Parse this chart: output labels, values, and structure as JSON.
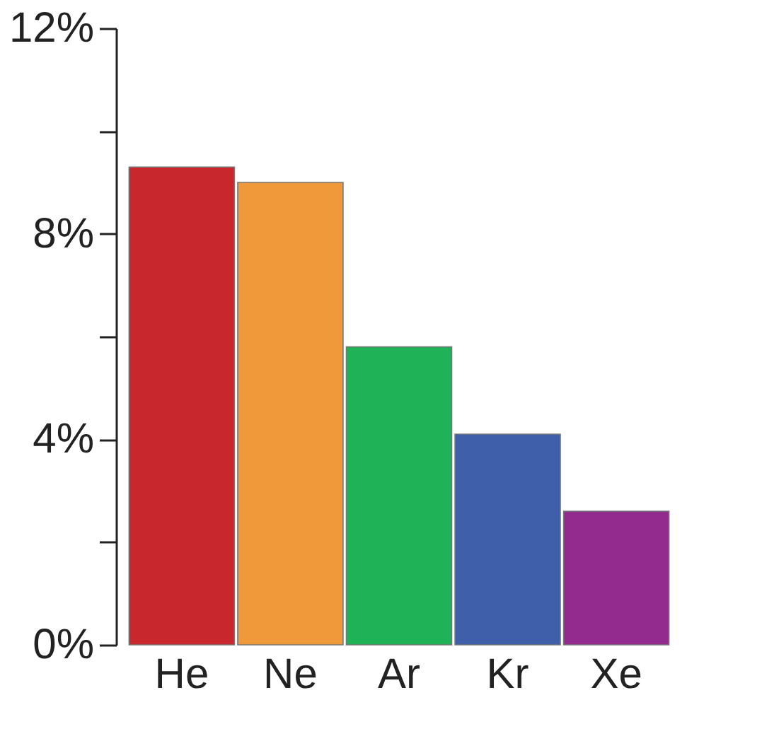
{
  "chart_data": {
    "type": "bar",
    "categories": [
      "He",
      "Ne",
      "Ar",
      "Kr",
      "Xe"
    ],
    "values": [
      9.3,
      9.0,
      5.8,
      4.1,
      2.6
    ],
    "colors": [
      "#c8282d",
      "#f0993a",
      "#1fb257",
      "#3f5fab",
      "#932a8e"
    ],
    "ylim": [
      0,
      12
    ],
    "yticks": [
      {
        "value": 0,
        "label": "0%"
      },
      {
        "value": 2,
        "label": null
      },
      {
        "value": 4,
        "label": "4%"
      },
      {
        "value": 6,
        "label": null
      },
      {
        "value": 8,
        "label": "8%"
      },
      {
        "value": 10,
        "label": null
      },
      {
        "value": 12,
        "label": "12%"
      }
    ],
    "grid": false
  }
}
